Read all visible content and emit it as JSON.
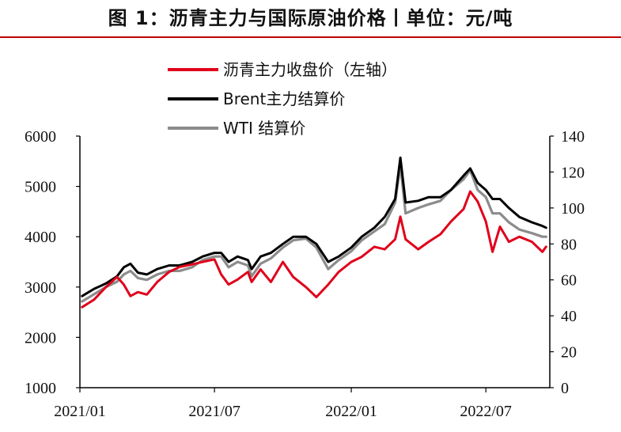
{
  "title": "图 1：沥青主力与国际原油价格丨单位：元/吨",
  "chart_data": {
    "type": "line",
    "title": "图 1：沥青主力与国际原油价格丨单位：元/吨",
    "x_ticks": [
      "2021/01",
      "2021/07",
      "2022/01",
      "2022/07"
    ],
    "y_left": {
      "lim": [
        1000,
        6000
      ],
      "ticks": [
        1000,
        2000,
        3000,
        4000,
        5000,
        6000
      ]
    },
    "y_right": {
      "lim": [
        0,
        140
      ],
      "ticks": [
        0,
        20,
        40,
        60,
        80,
        100,
        120,
        140
      ]
    },
    "legend_position": "top-center",
    "grid": false,
    "series": [
      {
        "name": "沥青主力收盘价（左轴）",
        "axis": "left",
        "color": "#e0001b",
        "x": [
          "2021/01/04",
          "2021/01/20",
          "2021/02/05",
          "2021/02/20",
          "2021/03/01",
          "2021/03/10",
          "2021/03/20",
          "2021/04/01",
          "2021/04/15",
          "2021/05/01",
          "2021/05/15",
          "2021/06/01",
          "2021/06/15",
          "2021/07/01",
          "2021/07/10",
          "2021/07/20",
          "2021/08/01",
          "2021/08/15",
          "2021/08/20",
          "2021/09/01",
          "2021/09/15",
          "2021/10/01",
          "2021/10/15",
          "2021/11/01",
          "2021/11/15",
          "2021/12/01",
          "2021/12/15",
          "2022/01/01",
          "2022/01/15",
          "2022/02/01",
          "2022/02/15",
          "2022/03/01",
          "2022/03/08",
          "2022/03/15",
          "2022/04/01",
          "2022/04/15",
          "2022/05/01",
          "2022/05/15",
          "2022/06/01",
          "2022/06/10",
          "2022/06/20",
          "2022/07/01",
          "2022/07/10",
          "2022/07/20",
          "2022/08/01",
          "2022/08/15",
          "2022/09/01",
          "2022/09/15",
          "2022/09/20"
        ],
        "values": [
          2600,
          2750,
          3000,
          3200,
          3050,
          2820,
          2900,
          2850,
          3100,
          3300,
          3400,
          3450,
          3500,
          3550,
          3250,
          3050,
          3150,
          3300,
          3100,
          3350,
          3100,
          3500,
          3200,
          3000,
          2800,
          3050,
          3300,
          3500,
          3600,
          3800,
          3750,
          3950,
          4400,
          3950,
          3750,
          3900,
          4050,
          4300,
          4550,
          4900,
          4700,
          4300,
          3700,
          4200,
          3900,
          4000,
          3900,
          3700,
          3800
        ]
      },
      {
        "name": "Brent主力结算价",
        "axis": "right",
        "color": "#000000",
        "x": [
          "2021/01/04",
          "2021/01/20",
          "2021/02/05",
          "2021/02/20",
          "2021/03/01",
          "2021/03/10",
          "2021/03/20",
          "2021/04/01",
          "2021/04/15",
          "2021/05/01",
          "2021/05/15",
          "2021/06/01",
          "2021/06/15",
          "2021/07/01",
          "2021/07/10",
          "2021/07/20",
          "2021/08/01",
          "2021/08/15",
          "2021/08/20",
          "2021/09/01",
          "2021/09/15",
          "2021/10/01",
          "2021/10/15",
          "2021/11/01",
          "2021/11/15",
          "2021/12/01",
          "2021/12/15",
          "2022/01/01",
          "2022/01/15",
          "2022/02/01",
          "2022/02/15",
          "2022/03/01",
          "2022/03/08",
          "2022/03/15",
          "2022/04/01",
          "2022/04/15",
          "2022/05/01",
          "2022/05/15",
          "2022/06/01",
          "2022/06/10",
          "2022/06/20",
          "2022/07/01",
          "2022/07/10",
          "2022/07/20",
          "2022/08/01",
          "2022/08/15",
          "2022/09/01",
          "2022/09/15",
          "2022/09/20"
        ],
        "values": [
          51,
          55,
          58,
          62,
          67,
          69,
          64,
          63,
          66,
          68,
          68,
          70,
          73,
          75,
          75,
          70,
          73,
          71,
          66,
          73,
          75,
          80,
          84,
          84,
          80,
          70,
          73,
          78,
          84,
          89,
          95,
          105,
          128,
          103,
          104,
          106,
          106,
          110,
          118,
          122,
          114,
          110,
          105,
          105,
          100,
          95,
          92,
          90,
          89
        ]
      },
      {
        "name": "WTI 结算价",
        "axis": "right",
        "color": "#8c8c8c",
        "x": [
          "2021/01/04",
          "2021/01/20",
          "2021/02/05",
          "2021/02/20",
          "2021/03/01",
          "2021/03/10",
          "2021/03/20",
          "2021/04/01",
          "2021/04/15",
          "2021/05/01",
          "2021/05/15",
          "2021/06/01",
          "2021/06/15",
          "2021/07/01",
          "2021/07/10",
          "2021/07/20",
          "2021/08/01",
          "2021/08/15",
          "2021/08/20",
          "2021/09/01",
          "2021/09/15",
          "2021/10/01",
          "2021/10/15",
          "2021/11/01",
          "2021/11/15",
          "2021/12/01",
          "2021/12/15",
          "2022/01/01",
          "2022/01/15",
          "2022/02/01",
          "2022/02/15",
          "2022/03/01",
          "2022/03/08",
          "2022/03/15",
          "2022/04/01",
          "2022/04/15",
          "2022/05/01",
          "2022/05/15",
          "2022/06/01",
          "2022/06/10",
          "2022/06/20",
          "2022/07/01",
          "2022/07/10",
          "2022/07/20",
          "2022/08/01",
          "2022/08/15",
          "2022/09/01",
          "2022/09/15",
          "2022/09/20"
        ],
        "values": [
          48,
          52,
          56,
          59,
          63,
          65,
          61,
          60,
          63,
          65,
          65,
          67,
          71,
          73,
          73,
          67,
          70,
          68,
          62,
          69,
          72,
          78,
          82,
          83,
          78,
          66,
          71,
          76,
          82,
          87,
          91,
          103,
          124,
          97,
          100,
          102,
          104,
          110,
          116,
          121,
          110,
          106,
          97,
          97,
          92,
          88,
          86,
          84,
          84
        ]
      }
    ]
  }
}
